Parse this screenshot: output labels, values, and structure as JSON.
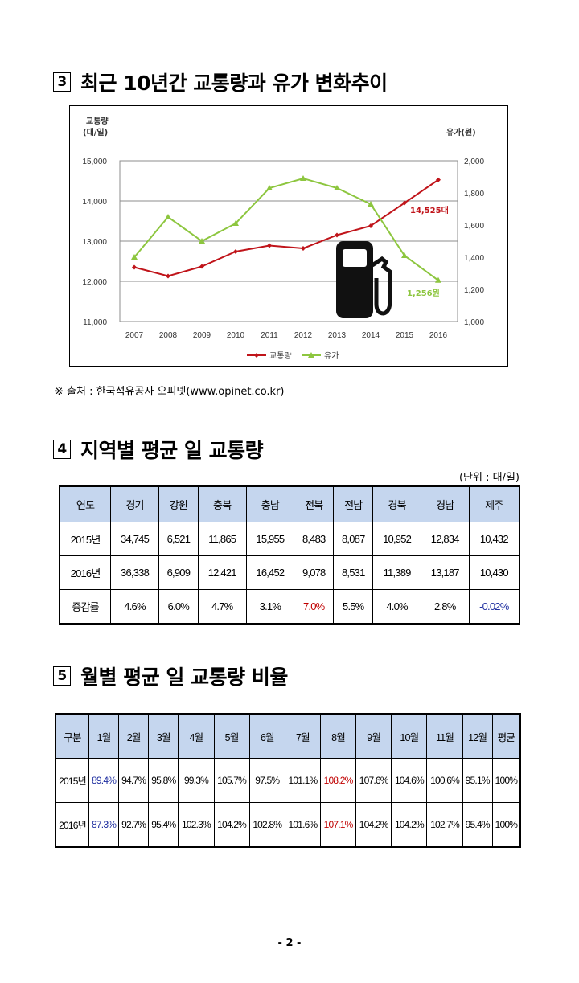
{
  "section3": {
    "number": "3",
    "title": "최근 10년간 교통량과 유가 변화추이"
  },
  "chart_data": {
    "type": "line",
    "x": [
      "2007",
      "2008",
      "2009",
      "2010",
      "2011",
      "2012",
      "2013",
      "2014",
      "2015",
      "2016"
    ],
    "series": [
      {
        "name": "교통량",
        "axis": "left",
        "color": "#c0141a",
        "values": [
          12350,
          12130,
          12370,
          12740,
          12890,
          12820,
          13150,
          13380,
          13950,
          14525
        ]
      },
      {
        "name": "유가",
        "axis": "right",
        "color": "#8dc63f",
        "values": [
          1400,
          1650,
          1500,
          1610,
          1830,
          1890,
          1830,
          1730,
          1410,
          1256
        ]
      }
    ],
    "left_axis": {
      "label_line1": "교통량",
      "label_line2": "(대/일)",
      "ylim": [
        11000,
        15000
      ],
      "ticks": [
        "11,000",
        "12,000",
        "13,000",
        "14,000",
        "15,000"
      ]
    },
    "right_axis": {
      "label": "유가(원)",
      "ylim": [
        1000,
        2000
      ],
      "ticks": [
        "1,000",
        "1,200",
        "1,400",
        "1,600",
        "1,800",
        "2,000"
      ]
    },
    "annotations": {
      "traffic_end": "14,525대",
      "oil_end": "1,256원"
    },
    "legend": {
      "position": "bottom",
      "items": [
        "교통량",
        "유가"
      ]
    },
    "grid": true,
    "icon": "fuel-pump-icon"
  },
  "source_note": "※ 출처 : 한국석유공사 오피넷(www.opinet.co.kr)",
  "section4": {
    "number": "4",
    "title": "지역별 평균 일 교통량"
  },
  "unit_note": "(단위 : 대/일)",
  "table1": {
    "headers": [
      "연도",
      "경기",
      "강원",
      "충북",
      "충남",
      "전북",
      "전남",
      "경북",
      "경남",
      "제주"
    ],
    "rows": [
      [
        "2015년",
        "34,745",
        "6,521",
        "11,865",
        "15,955",
        "8,483",
        "8,087",
        "10,952",
        "12,834",
        "10,432"
      ],
      [
        "2016년",
        "36,338",
        "6,909",
        "12,421",
        "16,452",
        "9,078",
        "8,531",
        "11,389",
        "13,187",
        "10,430"
      ],
      [
        "증감률",
        "4.6%",
        "6.0%",
        "4.7%",
        "3.1%",
        "7.0%",
        "5.5%",
        "4.0%",
        "2.8%",
        "-0.02%"
      ]
    ]
  },
  "section5": {
    "number": "5",
    "title": "월별 평균 일 교통량 비율"
  },
  "table2": {
    "headers": [
      "구분",
      "1월",
      "2월",
      "3월",
      "4월",
      "5월",
      "6월",
      "7월",
      "8월",
      "9월",
      "10월",
      "11월",
      "12월",
      "평균"
    ],
    "rows": [
      [
        "2015년",
        "89.4%",
        "94.7%",
        "95.8%",
        "99.3%",
        "105.7%",
        "97.5%",
        "101.1%",
        "108.2%",
        "107.6%",
        "104.6%",
        "100.6%",
        "95.1%",
        "100%"
      ],
      [
        "2016년",
        "87.3%",
        "92.7%",
        "95.4%",
        "102.3%",
        "104.2%",
        "102.8%",
        "101.6%",
        "107.1%",
        "104.2%",
        "104.2%",
        "102.7%",
        "95.4%",
        "100%"
      ]
    ]
  },
  "page_number": "- 2 -"
}
